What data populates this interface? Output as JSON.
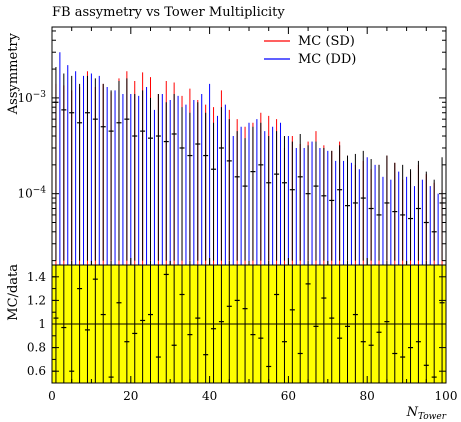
{
  "chart_data": [
    {
      "type": "scatter",
      "title": "FB assymetry vs Tower Multiplicity",
      "xlabel": "",
      "ylabel": "Assymmetry",
      "xlim": [
        0,
        100
      ],
      "ylim": [
        1.8e-05,
        0.0055
      ],
      "yscale": "log",
      "grid": false,
      "legend_position": "top-right",
      "ytick_labels": [
        {
          "base": "10",
          "exp": "−3",
          "value": 0.001
        },
        {
          "base": "10",
          "exp": "−4",
          "value": 0.0001
        }
      ],
      "data_color": "#000000",
      "series": [
        {
          "name": "MC (SD)",
          "color": "#ff0000",
          "x": [
            1,
            3,
            5,
            7,
            9,
            11,
            13,
            15,
            17,
            19,
            21,
            23,
            25,
            27,
            29,
            31,
            33,
            35,
            37,
            39,
            41,
            43,
            45,
            47,
            49,
            51,
            53,
            55,
            57,
            59,
            61,
            63,
            65,
            67,
            69,
            71,
            73,
            75,
            77,
            79,
            81,
            83,
            85,
            87,
            89,
            91,
            93,
            95,
            97,
            99
          ],
          "y": [
            0.0014,
            0.00135,
            0.0012,
            0.0013,
            0.0019,
            0.0013,
            0.0014,
            0.00115,
            0.0016,
            0.0019,
            0.0015,
            0.00185,
            0.00165,
            0.0011,
            0.0015,
            0.00145,
            0.00105,
            0.00125,
            0.00095,
            0.00085,
            0.0008,
            0.0012,
            0.00075,
            0.0006,
            0.0005,
            0.00055,
            0.0007,
            0.00065,
            0.0006,
            0.0003,
            0.0004,
            0.00033,
            0.00035,
            0.00045,
            0.00032,
            0.00028,
            0.00035,
            0.00025,
            0.0002,
            0.00022,
            0.00018,
            0.0002,
            0.00025,
            0.00021,
            0.00014,
            0.00017,
            0.0002,
            0.00016,
            0.00013,
            0.00011
          ]
        },
        {
          "name": "MC (DD)",
          "color": "#0000ff",
          "x": [
            2,
            4,
            6,
            8,
            10,
            12,
            14,
            16,
            18,
            20,
            22,
            24,
            26,
            28,
            30,
            32,
            34,
            36,
            38,
            40,
            42,
            44,
            46,
            48,
            50,
            52,
            54,
            56,
            58,
            60,
            62,
            64,
            66,
            68,
            70,
            72,
            74,
            76,
            78,
            80,
            82,
            84,
            86,
            88,
            90,
            92,
            94,
            96,
            98,
            100
          ],
          "y": [
            0.003,
            0.0022,
            0.0019,
            0.0017,
            0.0018,
            0.0017,
            0.0013,
            0.0012,
            0.0011,
            0.0011,
            0.00105,
            0.0013,
            0.00075,
            0.0011,
            0.00095,
            0.00105,
            0.00085,
            0.00095,
            0.0011,
            0.0014,
            0.00065,
            0.00085,
            0.0004,
            0.0005,
            0.00055,
            0.0006,
            0.00045,
            0.0005,
            0.00055,
            0.0004,
            0.0003,
            0.0003,
            0.00035,
            0.0003,
            0.00028,
            0.00022,
            0.00022,
            0.00021,
            0.00018,
            0.00024,
            0.0002,
            0.00015,
            0.00014,
            0.00017,
            0.00015,
            0.00012,
            0.00014,
            0.00012,
            0.0001,
            0.0001
          ]
        }
      ],
      "data": {
        "x": [
          1,
          3,
          5,
          7,
          9,
          11,
          13,
          15,
          17,
          19,
          21,
          23,
          25,
          27,
          29,
          31,
          33,
          35,
          37,
          39,
          41,
          43,
          45,
          47,
          49,
          51,
          53,
          55,
          57,
          59,
          61,
          63,
          65,
          67,
          69,
          71,
          73,
          75,
          77,
          79,
          81,
          83,
          85,
          87,
          89,
          91,
          93,
          95,
          97,
          99
        ],
        "y": [
          0.0009,
          0.00075,
          0.0007,
          0.00055,
          0.0007,
          0.0006,
          0.0005,
          0.00045,
          0.00055,
          0.0006,
          0.0004,
          0.00045,
          0.00038,
          0.0004,
          0.00035,
          0.00042,
          0.0003,
          0.00025,
          0.00033,
          0.00025,
          0.00018,
          0.0003,
          0.00022,
          0.00015,
          0.00012,
          0.00017,
          0.0002,
          0.00013,
          0.00016,
          0.00013,
          0.00011,
          0.00015,
          0.0001,
          0.00012,
          9.5e-05,
          8.5e-05,
          0.00011,
          7.5e-05,
          8e-05,
          9e-05,
          7e-05,
          6e-05,
          8e-05,
          6.5e-05,
          6e-05,
          5.5e-05,
          7e-05,
          5e-05,
          4e-05,
          8e-05
        ],
        "ylow": [
          2e-05,
          2e-05,
          2e-05,
          2e-05,
          2e-05,
          2e-05,
          2e-05,
          2e-05,
          2e-05,
          2e-05,
          2e-05,
          2e-05,
          2e-05,
          2e-05,
          2e-05,
          2e-05,
          2e-05,
          2e-05,
          2e-05,
          2e-05,
          2e-05,
          2e-05,
          2e-05,
          2e-05,
          2e-05,
          2e-05,
          2e-05,
          2e-05,
          2e-05,
          2e-05,
          2e-05,
          2e-05,
          2e-05,
          2e-05,
          2e-05,
          2e-05,
          2e-05,
          2e-05,
          2e-05,
          2e-05,
          2e-05,
          2e-05,
          2e-05,
          2e-05,
          2e-05,
          2e-05,
          2e-05,
          2e-05,
          2e-05,
          2e-05
        ],
        "yhigh": [
          0.0021,
          0.0018,
          0.0017,
          0.0014,
          0.0017,
          0.0016,
          0.0014,
          0.0012,
          0.0015,
          0.0016,
          0.0011,
          0.0012,
          0.001,
          0.0011,
          0.0009,
          0.0011,
          0.0008,
          0.0007,
          0.0009,
          0.0007,
          0.00055,
          0.0008,
          0.0006,
          0.00045,
          0.00038,
          0.0005,
          0.00055,
          0.0004,
          0.00045,
          0.0004,
          0.00035,
          0.00042,
          0.00032,
          0.00035,
          0.0003,
          0.00028,
          0.00032,
          0.00025,
          0.00026,
          0.00028,
          0.00023,
          0.0002,
          0.00025,
          0.00021,
          0.0002,
          0.00018,
          0.00022,
          0.00017,
          0.00014,
          0.00024
        ]
      }
    },
    {
      "type": "scatter",
      "xlabel": "N",
      "xlabel_sub": "Tower",
      "ylabel": "MC/data",
      "xlim": [
        0,
        100
      ],
      "ylim": [
        0.5,
        1.5
      ],
      "xticks": [
        0,
        20,
        40,
        60,
        80,
        100
      ],
      "yticks": [
        0.6,
        0.8,
        1,
        1.2,
        1.4
      ],
      "reference_line": 1,
      "band": {
        "range": [
          0.5,
          1.5
        ],
        "color": "#ffff00"
      },
      "grid": false,
      "ratio_color": "#000000",
      "ratio": {
        "x": [
          1,
          3,
          5,
          7,
          9,
          11,
          13,
          15,
          17,
          19,
          21,
          23,
          25,
          27,
          29,
          31,
          33,
          35,
          37,
          39,
          41,
          43,
          45,
          47,
          49,
          51,
          53,
          55,
          57,
          59,
          61,
          63,
          65,
          67,
          69,
          71,
          73,
          75,
          77,
          79,
          81,
          83,
          85,
          87,
          89,
          91,
          93,
          95,
          97,
          99
        ],
        "y": [
          1.05,
          0.97,
          0.6,
          1.3,
          0.95,
          1.38,
          1.08,
          0.55,
          1.18,
          0.85,
          0.92,
          1.03,
          1.08,
          0.72,
          1.42,
          0.82,
          1.25,
          0.91,
          1.05,
          0.74,
          0.96,
          1.02,
          1.15,
          1.2,
          1.13,
          0.91,
          0.88,
          0.64,
          1.25,
          0.85,
          1.12,
          0.75,
          1.34,
          0.98,
          1.22,
          1.05,
          0.88,
          0.98,
          1.08,
          0.85,
          0.82,
          0.93,
          1.02,
          0.75,
          0.72,
          0.8,
          0.85,
          0.65,
          0.55,
          1.18
        ],
        "ylow": [
          0.5,
          0.5,
          0.5,
          0.5,
          0.5,
          0.5,
          0.5,
          0.5,
          0.5,
          0.5,
          0.5,
          0.5,
          0.5,
          0.5,
          0.5,
          0.5,
          0.5,
          0.5,
          0.5,
          0.5,
          0.5,
          0.5,
          0.5,
          0.5,
          0.5,
          0.5,
          0.5,
          0.5,
          0.5,
          0.5,
          0.5,
          0.5,
          0.5,
          0.5,
          0.5,
          0.5,
          0.5,
          0.5,
          0.5,
          0.5,
          0.5,
          0.5,
          0.5,
          0.5,
          0.5,
          0.5,
          0.5,
          0.5,
          0.5,
          0.5
        ],
        "yhigh": [
          1.5,
          1.5,
          1.5,
          1.5,
          1.5,
          1.5,
          1.5,
          1.5,
          1.5,
          1.5,
          1.5,
          1.5,
          1.5,
          1.5,
          1.5,
          1.5,
          1.5,
          1.5,
          1.5,
          1.5,
          1.5,
          1.5,
          1.5,
          1.5,
          1.5,
          1.5,
          1.5,
          1.5,
          1.5,
          1.5,
          1.5,
          1.5,
          1.5,
          1.5,
          1.5,
          1.5,
          1.5,
          1.5,
          1.5,
          1.5,
          1.5,
          1.5,
          1.5,
          1.5,
          1.5,
          1.5,
          1.5,
          1.5,
          1.5,
          1.5
        ]
      }
    }
  ]
}
